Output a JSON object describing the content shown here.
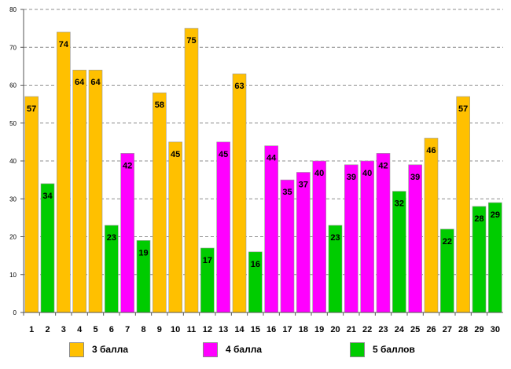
{
  "chart_data": {
    "type": "bar",
    "title": "",
    "xlabel": "",
    "ylabel": "",
    "ylim": [
      0,
      80
    ],
    "yticks": [
      0,
      10,
      20,
      30,
      40,
      50,
      60,
      70,
      80
    ],
    "grid": true,
    "categories": [
      "1",
      "2",
      "3",
      "4",
      "5",
      "6",
      "7",
      "8",
      "9",
      "10",
      "11",
      "12",
      "13",
      "14",
      "15",
      "16",
      "17",
      "18",
      "19",
      "20",
      "21",
      "22",
      "23",
      "24",
      "25",
      "26",
      "27",
      "28",
      "29",
      "30"
    ],
    "values": [
      57,
      34,
      74,
      64,
      64,
      23,
      42,
      19,
      58,
      45,
      75,
      17,
      45,
      63,
      16,
      44,
      35,
      37,
      40,
      23,
      39,
      40,
      42,
      32,
      39,
      46,
      22,
      57,
      28,
      29
    ],
    "groups": [
      "3",
      "5",
      "3",
      "3",
      "3",
      "5",
      "4",
      "5",
      "3",
      "3",
      "3",
      "5",
      "4",
      "3",
      "5",
      "4",
      "4",
      "4",
      "4",
      "5",
      "4",
      "4",
      "4",
      "5",
      "4",
      "3",
      "5",
      "3",
      "5",
      "5"
    ],
    "series": [
      {
        "key": "3",
        "name": "3 балла",
        "color": "#FFC000"
      },
      {
        "key": "4",
        "name": "4 балла",
        "color": "#FF00FF"
      },
      {
        "key": "5",
        "name": "5 баллов",
        "color": "#00CC00"
      }
    ],
    "legend_position": "bottom"
  }
}
